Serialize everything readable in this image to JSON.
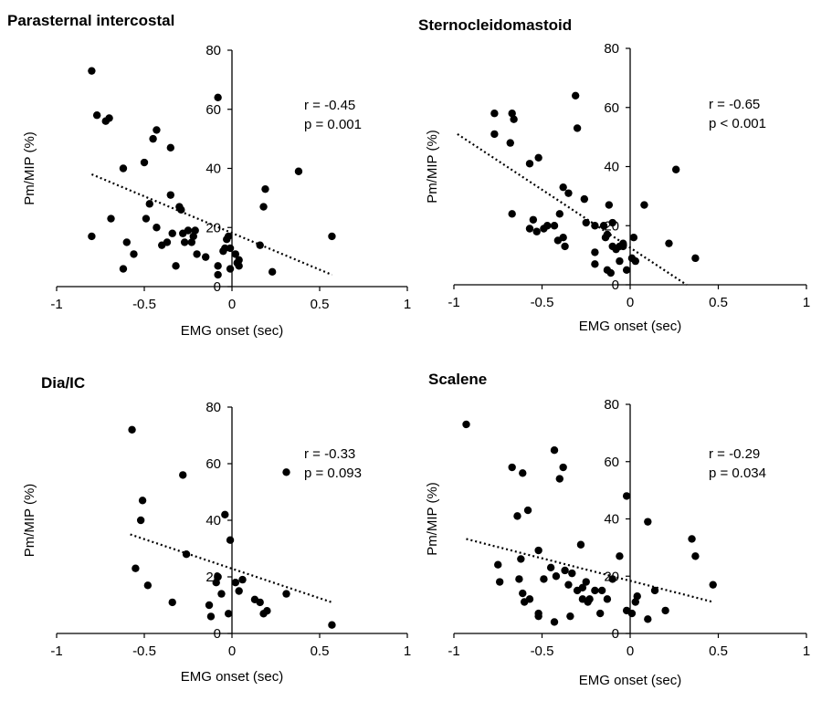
{
  "chart_data": [
    {
      "type": "scatter",
      "title": "Parasternal intercostal",
      "xlabel": "EMG onset (sec)",
      "ylabel": "Pm/MIP (%)",
      "xlim": [
        -1,
        1
      ],
      "ylim": [
        0,
        80
      ],
      "xticks": [
        "-1",
        "-0.5",
        "0",
        "0.5",
        "1"
      ],
      "yticks": [
        "0",
        "20",
        "40",
        "60",
        "80"
      ],
      "annotations": [
        "r = -0.45",
        "p = 0.001"
      ],
      "trendline": {
        "x": [
          -0.8,
          0.57
        ],
        "y": [
          38,
          4
        ]
      },
      "points": [
        [
          -0.8,
          73
        ],
        [
          -0.77,
          58
        ],
        [
          -0.72,
          56
        ],
        [
          -0.7,
          57
        ],
        [
          -0.8,
          17
        ],
        [
          -0.69,
          23
        ],
        [
          -0.62,
          40
        ],
        [
          -0.6,
          15
        ],
        [
          -0.62,
          6
        ],
        [
          -0.56,
          11
        ],
        [
          -0.5,
          42
        ],
        [
          -0.49,
          23
        ],
        [
          -0.47,
          28
        ],
        [
          -0.45,
          50
        ],
        [
          -0.43,
          53
        ],
        [
          -0.43,
          20
        ],
        [
          -0.4,
          14
        ],
        [
          -0.37,
          15
        ],
        [
          -0.35,
          31
        ],
        [
          -0.35,
          47
        ],
        [
          -0.34,
          18
        ],
        [
          -0.32,
          7
        ],
        [
          -0.3,
          27
        ],
        [
          -0.29,
          26
        ],
        [
          -0.28,
          18
        ],
        [
          -0.27,
          15
        ],
        [
          -0.25,
          19
        ],
        [
          -0.23,
          15
        ],
        [
          -0.22,
          17
        ],
        [
          -0.21,
          19
        ],
        [
          -0.2,
          11
        ],
        [
          -0.15,
          10
        ],
        [
          -0.08,
          64
        ],
        [
          -0.08,
          4
        ],
        [
          -0.08,
          7
        ],
        [
          -0.05,
          12
        ],
        [
          -0.04,
          13
        ],
        [
          -0.03,
          16
        ],
        [
          -0.02,
          17
        ],
        [
          -0.01,
          13
        ],
        [
          -0.01,
          6
        ],
        [
          0.02,
          11
        ],
        [
          0.03,
          8
        ],
        [
          0.04,
          7
        ],
        [
          0.04,
          9
        ],
        [
          0.16,
          14
        ],
        [
          0.18,
          27
        ],
        [
          0.19,
          33
        ],
        [
          0.23,
          5
        ],
        [
          0.38,
          39
        ],
        [
          0.57,
          17
        ]
      ]
    },
    {
      "type": "scatter",
      "title": "Sternocleidomastoid",
      "xlabel": "EMG onset (sec)",
      "ylabel": "Pm/MIP (%)",
      "xlim": [
        -1,
        1
      ],
      "ylim": [
        0,
        80
      ],
      "xticks": [
        "-1",
        "-0.5",
        "0",
        "0.5",
        "1"
      ],
      "yticks": [
        "0",
        "20",
        "40",
        "60",
        "80"
      ],
      "annotations": [
        "r = -0.65",
        "p < 0.001"
      ],
      "trendline": {
        "x": [
          -0.98,
          0.32
        ],
        "y": [
          51,
          0
        ]
      },
      "points": [
        [
          -0.77,
          58
        ],
        [
          -0.77,
          51
        ],
        [
          -0.68,
          48
        ],
        [
          -0.67,
          58
        ],
        [
          -0.66,
          56
        ],
        [
          -0.67,
          24
        ],
        [
          -0.57,
          41
        ],
        [
          -0.52,
          43
        ],
        [
          -0.57,
          19
        ],
        [
          -0.55,
          22
        ],
        [
          -0.53,
          18
        ],
        [
          -0.49,
          19
        ],
        [
          -0.47,
          20
        ],
        [
          -0.43,
          20
        ],
        [
          -0.4,
          24
        ],
        [
          -0.38,
          33
        ],
        [
          -0.35,
          31
        ],
        [
          -0.41,
          15
        ],
        [
          -0.38,
          16
        ],
        [
          -0.37,
          13
        ],
        [
          -0.31,
          64
        ],
        [
          -0.3,
          53
        ],
        [
          -0.26,
          29
        ],
        [
          -0.25,
          21
        ],
        [
          -0.2,
          20
        ],
        [
          -0.2,
          11
        ],
        [
          -0.2,
          7
        ],
        [
          -0.15,
          20
        ],
        [
          -0.14,
          16
        ],
        [
          -0.13,
          17
        ],
        [
          -0.13,
          5
        ],
        [
          -0.12,
          27
        ],
        [
          -0.11,
          4
        ],
        [
          -0.1,
          13
        ],
        [
          -0.1,
          21
        ],
        [
          -0.08,
          12
        ],
        [
          -0.06,
          8
        ],
        [
          -0.06,
          13
        ],
        [
          -0.04,
          13
        ],
        [
          -0.04,
          14
        ],
        [
          -0.02,
          5
        ],
        [
          0.01,
          9
        ],
        [
          0.02,
          16
        ],
        [
          0.03,
          8
        ],
        [
          0.08,
          27
        ],
        [
          0.22,
          14
        ],
        [
          0.26,
          39
        ],
        [
          0.37,
          9
        ]
      ]
    },
    {
      "type": "scatter",
      "title": "Dia/IC",
      "xlabel": "EMG onset (sec)",
      "ylabel": "Pm/MIP (%)",
      "xlim": [
        -1,
        1
      ],
      "ylim": [
        0,
        80
      ],
      "xticks": [
        "-1",
        "-0.5",
        "0",
        "0.5",
        "1"
      ],
      "yticks": [
        "0",
        "20",
        "40",
        "60",
        "80"
      ],
      "annotations": [
        "r = -0.33",
        "p = 0.093"
      ],
      "trendline": {
        "x": [
          -0.58,
          0.57
        ],
        "y": [
          35,
          11
        ]
      },
      "points": [
        [
          -0.57,
          72
        ],
        [
          -0.55,
          23
        ],
        [
          -0.52,
          40
        ],
        [
          -0.51,
          47
        ],
        [
          -0.48,
          17
        ],
        [
          -0.34,
          11
        ],
        [
          -0.28,
          56
        ],
        [
          -0.26,
          28
        ],
        [
          -0.13,
          10
        ],
        [
          -0.12,
          6
        ],
        [
          -0.09,
          18
        ],
        [
          -0.08,
          20
        ],
        [
          -0.06,
          14
        ],
        [
          -0.04,
          42
        ],
        [
          -0.02,
          7
        ],
        [
          -0.01,
          33
        ],
        [
          0.02,
          18
        ],
        [
          0.04,
          15
        ],
        [
          0.06,
          19
        ],
        [
          0.13,
          12
        ],
        [
          0.16,
          11
        ],
        [
          0.18,
          7
        ],
        [
          0.2,
          8
        ],
        [
          0.31,
          57
        ],
        [
          0.31,
          14
        ],
        [
          0.57,
          3
        ]
      ]
    },
    {
      "type": "scatter",
      "title": "Scalene",
      "xlabel": "EMG onset (sec)",
      "ylabel": "Pm/MIP (%)",
      "xlim": [
        -1,
        1
      ],
      "ylim": [
        0,
        80
      ],
      "xticks": [
        "-1",
        "-0.5",
        "0",
        "0.5",
        "1"
      ],
      "yticks": [
        "0",
        "20",
        "40",
        "60",
        "80"
      ],
      "annotations": [
        "r = -0.29",
        "p = 0.034"
      ],
      "trendline": {
        "x": [
          -0.93,
          0.47
        ],
        "y": [
          33,
          11
        ]
      },
      "points": [
        [
          -0.93,
          73
        ],
        [
          -0.75,
          24
        ],
        [
          -0.74,
          18
        ],
        [
          -0.67,
          58
        ],
        [
          -0.64,
          41
        ],
        [
          -0.63,
          19
        ],
        [
          -0.62,
          26
        ],
        [
          -0.61,
          56
        ],
        [
          -0.61,
          14
        ],
        [
          -0.6,
          11
        ],
        [
          -0.58,
          43
        ],
        [
          -0.57,
          12
        ],
        [
          -0.52,
          29
        ],
        [
          -0.52,
          7
        ],
        [
          -0.52,
          6
        ],
        [
          -0.49,
          19
        ],
        [
          -0.45,
          23
        ],
        [
          -0.43,
          64
        ],
        [
          -0.43,
          4
        ],
        [
          -0.42,
          20
        ],
        [
          -0.4,
          54
        ],
        [
          -0.38,
          58
        ],
        [
          -0.37,
          22
        ],
        [
          -0.35,
          17
        ],
        [
          -0.34,
          6
        ],
        [
          -0.33,
          21
        ],
        [
          -0.3,
          15
        ],
        [
          -0.28,
          31
        ],
        [
          -0.27,
          16
        ],
        [
          -0.27,
          12
        ],
        [
          -0.25,
          18
        ],
        [
          -0.24,
          11
        ],
        [
          -0.23,
          12
        ],
        [
          -0.2,
          15
        ],
        [
          -0.17,
          7
        ],
        [
          -0.16,
          15
        ],
        [
          -0.13,
          12
        ],
        [
          -0.1,
          19
        ],
        [
          -0.06,
          27
        ],
        [
          -0.02,
          48
        ],
        [
          -0.02,
          8
        ],
        [
          0.01,
          7
        ],
        [
          0.03,
          11
        ],
        [
          0.04,
          13
        ],
        [
          0.1,
          39
        ],
        [
          0.1,
          5
        ],
        [
          0.14,
          15
        ],
        [
          0.2,
          8
        ],
        [
          0.35,
          33
        ],
        [
          0.37,
          27
        ],
        [
          0.47,
          17
        ]
      ]
    }
  ]
}
